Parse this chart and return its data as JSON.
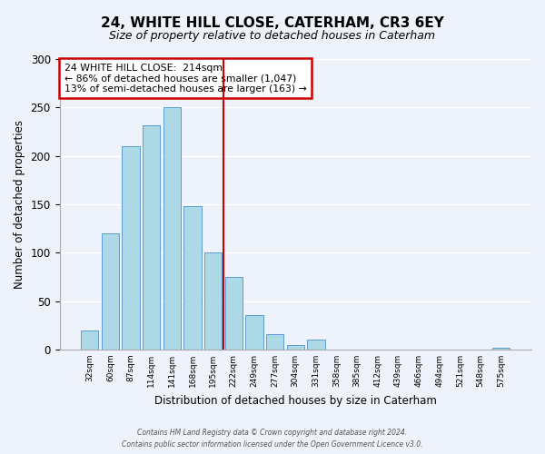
{
  "title": "24, WHITE HILL CLOSE, CATERHAM, CR3 6EY",
  "subtitle": "Size of property relative to detached houses in Caterham",
  "xlabel": "Distribution of detached houses by size in Caterham",
  "ylabel": "Number of detached properties",
  "bar_labels": [
    "32sqm",
    "60sqm",
    "87sqm",
    "114sqm",
    "141sqm",
    "168sqm",
    "195sqm",
    "222sqm",
    "249sqm",
    "277sqm",
    "304sqm",
    "331sqm",
    "358sqm",
    "385sqm",
    "412sqm",
    "439sqm",
    "466sqm",
    "494sqm",
    "521sqm",
    "548sqm",
    "575sqm"
  ],
  "bar_values": [
    20,
    120,
    210,
    232,
    250,
    148,
    100,
    75,
    36,
    16,
    5,
    10,
    0,
    0,
    0,
    0,
    0,
    0,
    0,
    0,
    2
  ],
  "bar_color": "#add8e6",
  "bar_edge_color": "#5b9bd5",
  "annotation_title": "24 WHITE HILL CLOSE:  214sqm",
  "annotation_line1": "← 86% of detached houses are smaller (1,047)",
  "annotation_line2": "13% of semi-detached houses are larger (163) →",
  "annotation_box_color": "#ffffff",
  "annotation_box_edge": "#cc0000",
  "vline_color": "#cc0000",
  "vline_pos": 6.5,
  "footer1": "Contains HM Land Registry data © Crown copyright and database right 2024.",
  "footer2": "Contains public sector information licensed under the Open Government Licence v3.0.",
  "ylim": [
    0,
    300
  ],
  "yticks": [
    0,
    50,
    100,
    150,
    200,
    250,
    300
  ],
  "background_color": "#eef2fb"
}
